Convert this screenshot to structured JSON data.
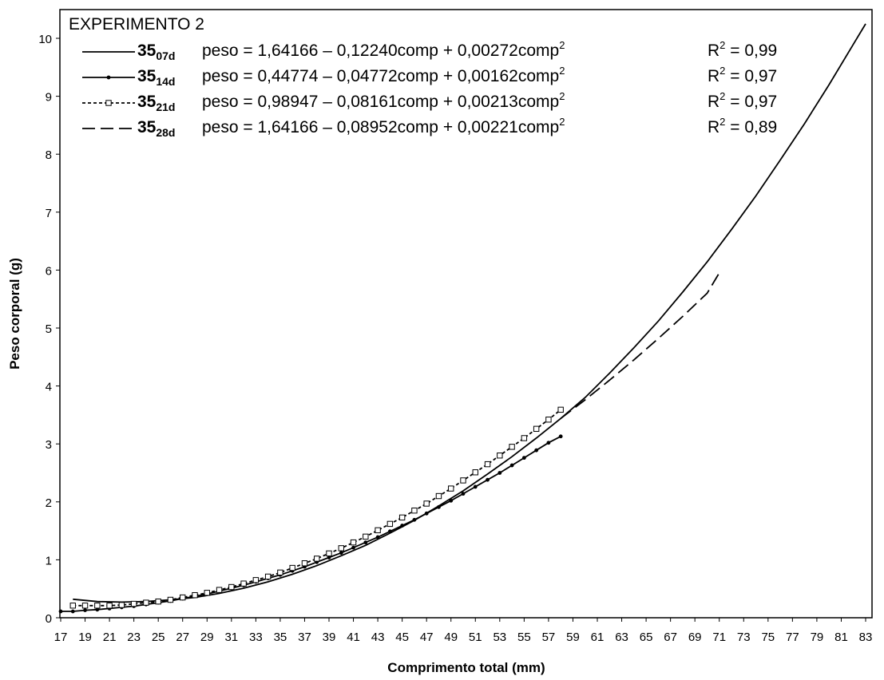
{
  "chart_data": {
    "type": "line",
    "title": "EXPERIMENTO 2",
    "xlabel": "Comprimento total (mm)",
    "ylabel": "Peso corporal (g)",
    "xlim": [
      17,
      83
    ],
    "ylim": [
      0,
      10.5
    ],
    "xticks": [
      "17",
      "19",
      "21",
      "23",
      "25",
      "27",
      "29",
      "31",
      "33",
      "35",
      "37",
      "39",
      "41",
      "43",
      "45",
      "47",
      "49",
      "51",
      "53",
      "55",
      "57",
      "59",
      "61",
      "63",
      "65",
      "67",
      "69",
      "71",
      "73",
      "75",
      "77",
      "79",
      "81",
      "83"
    ],
    "yticks": [
      "0",
      "1",
      "2",
      "3",
      "4",
      "5",
      "6",
      "7",
      "8",
      "9",
      "10"
    ],
    "grid": false,
    "legend_position": "top-left",
    "series": [
      {
        "name": "35",
        "name_sub": "07d",
        "equation": "peso = 1,64166 – 0,12240comp + 0,00272comp",
        "equation_sup": "2",
        "r2_prefix": "R",
        "r2_sup": "2",
        "r2_value": " = 0,99",
        "style": "solid",
        "marker": "none",
        "x": [
          18,
          20,
          22,
          24,
          26,
          28,
          30,
          32,
          34,
          36,
          38,
          40,
          42,
          44,
          46,
          48,
          50,
          52,
          54,
          56,
          58,
          60,
          62,
          64,
          66,
          68,
          70,
          72,
          74,
          76,
          78,
          80,
          82,
          83
        ],
        "y": [
          0.32,
          0.28,
          0.27,
          0.28,
          0.31,
          0.35,
          0.42,
          0.51,
          0.62,
          0.75,
          0.9,
          1.07,
          1.25,
          1.46,
          1.68,
          1.93,
          2.19,
          2.48,
          2.78,
          3.1,
          3.44,
          3.8,
          4.22,
          4.66,
          5.12,
          5.62,
          6.14,
          6.7,
          7.28,
          7.9,
          8.53,
          9.2,
          9.9,
          10.25
        ]
      },
      {
        "name": "35",
        "name_sub": "14d",
        "equation": "peso = 0,44774 – 0,04772comp + 0,00162comp",
        "equation_sup": "2",
        "r2_prefix": "R",
        "r2_sup": "2",
        "r2_value": " = 0,97",
        "style": "solid",
        "marker": "dot",
        "x": [
          17,
          18,
          19,
          20,
          21,
          22,
          23,
          24,
          25,
          26,
          27,
          28,
          29,
          30,
          31,
          32,
          33,
          34,
          35,
          36,
          37,
          38,
          39,
          40,
          41,
          42,
          43,
          44,
          45,
          46,
          47,
          48,
          49,
          50,
          51,
          52,
          53,
          54,
          55,
          56,
          57,
          58
        ],
        "y": [
          0.11,
          0.11,
          0.13,
          0.14,
          0.16,
          0.18,
          0.2,
          0.23,
          0.26,
          0.29,
          0.33,
          0.37,
          0.41,
          0.46,
          0.51,
          0.56,
          0.62,
          0.68,
          0.74,
          0.81,
          0.88,
          0.96,
          1.04,
          1.12,
          1.21,
          1.3,
          1.39,
          1.49,
          1.59,
          1.69,
          1.8,
          1.91,
          2.02,
          2.14,
          2.26,
          2.38,
          2.5,
          2.63,
          2.76,
          2.89,
          3.02,
          3.13
        ]
      },
      {
        "name": "35",
        "name_sub": "21d",
        "equation": "peso = 0,98947 – 0,08161comp + 0,00213comp",
        "equation_sup": "2",
        "r2_prefix": "R",
        "r2_sup": "2",
        "r2_value": " = 0,97",
        "style": "dashed-short",
        "marker": "square",
        "x": [
          18,
          19,
          20,
          21,
          22,
          23,
          24,
          25,
          26,
          27,
          28,
          29,
          30,
          31,
          32,
          33,
          34,
          35,
          36,
          37,
          38,
          39,
          40,
          41,
          42,
          43,
          44,
          45,
          46,
          47,
          48,
          49,
          50,
          51,
          52,
          53,
          54,
          55,
          56,
          57,
          58
        ],
        "y": [
          0.21,
          0.21,
          0.21,
          0.21,
          0.22,
          0.24,
          0.26,
          0.28,
          0.31,
          0.35,
          0.39,
          0.43,
          0.48,
          0.53,
          0.59,
          0.65,
          0.71,
          0.78,
          0.86,
          0.94,
          1.02,
          1.11,
          1.2,
          1.3,
          1.4,
          1.51,
          1.62,
          1.73,
          1.85,
          1.97,
          2.1,
          2.23,
          2.37,
          2.51,
          2.65,
          2.8,
          2.95,
          3.1,
          3.26,
          3.42,
          3.59
        ]
      },
      {
        "name": "35",
        "name_sub": "28d",
        "equation": "peso = 1,64166 – 0,08952comp + 0,00221comp",
        "equation_sup": "2",
        "r2_prefix": "R",
        "r2_sup": "2",
        "r2_value": " = 0,89",
        "style": "dashed-long",
        "marker": "none",
        "x": [
          58,
          60,
          62,
          64,
          66,
          68,
          70,
          71
        ],
        "y": [
          3.44,
          3.76,
          4.1,
          4.45,
          4.82,
          5.2,
          5.6,
          5.95
        ]
      }
    ]
  }
}
